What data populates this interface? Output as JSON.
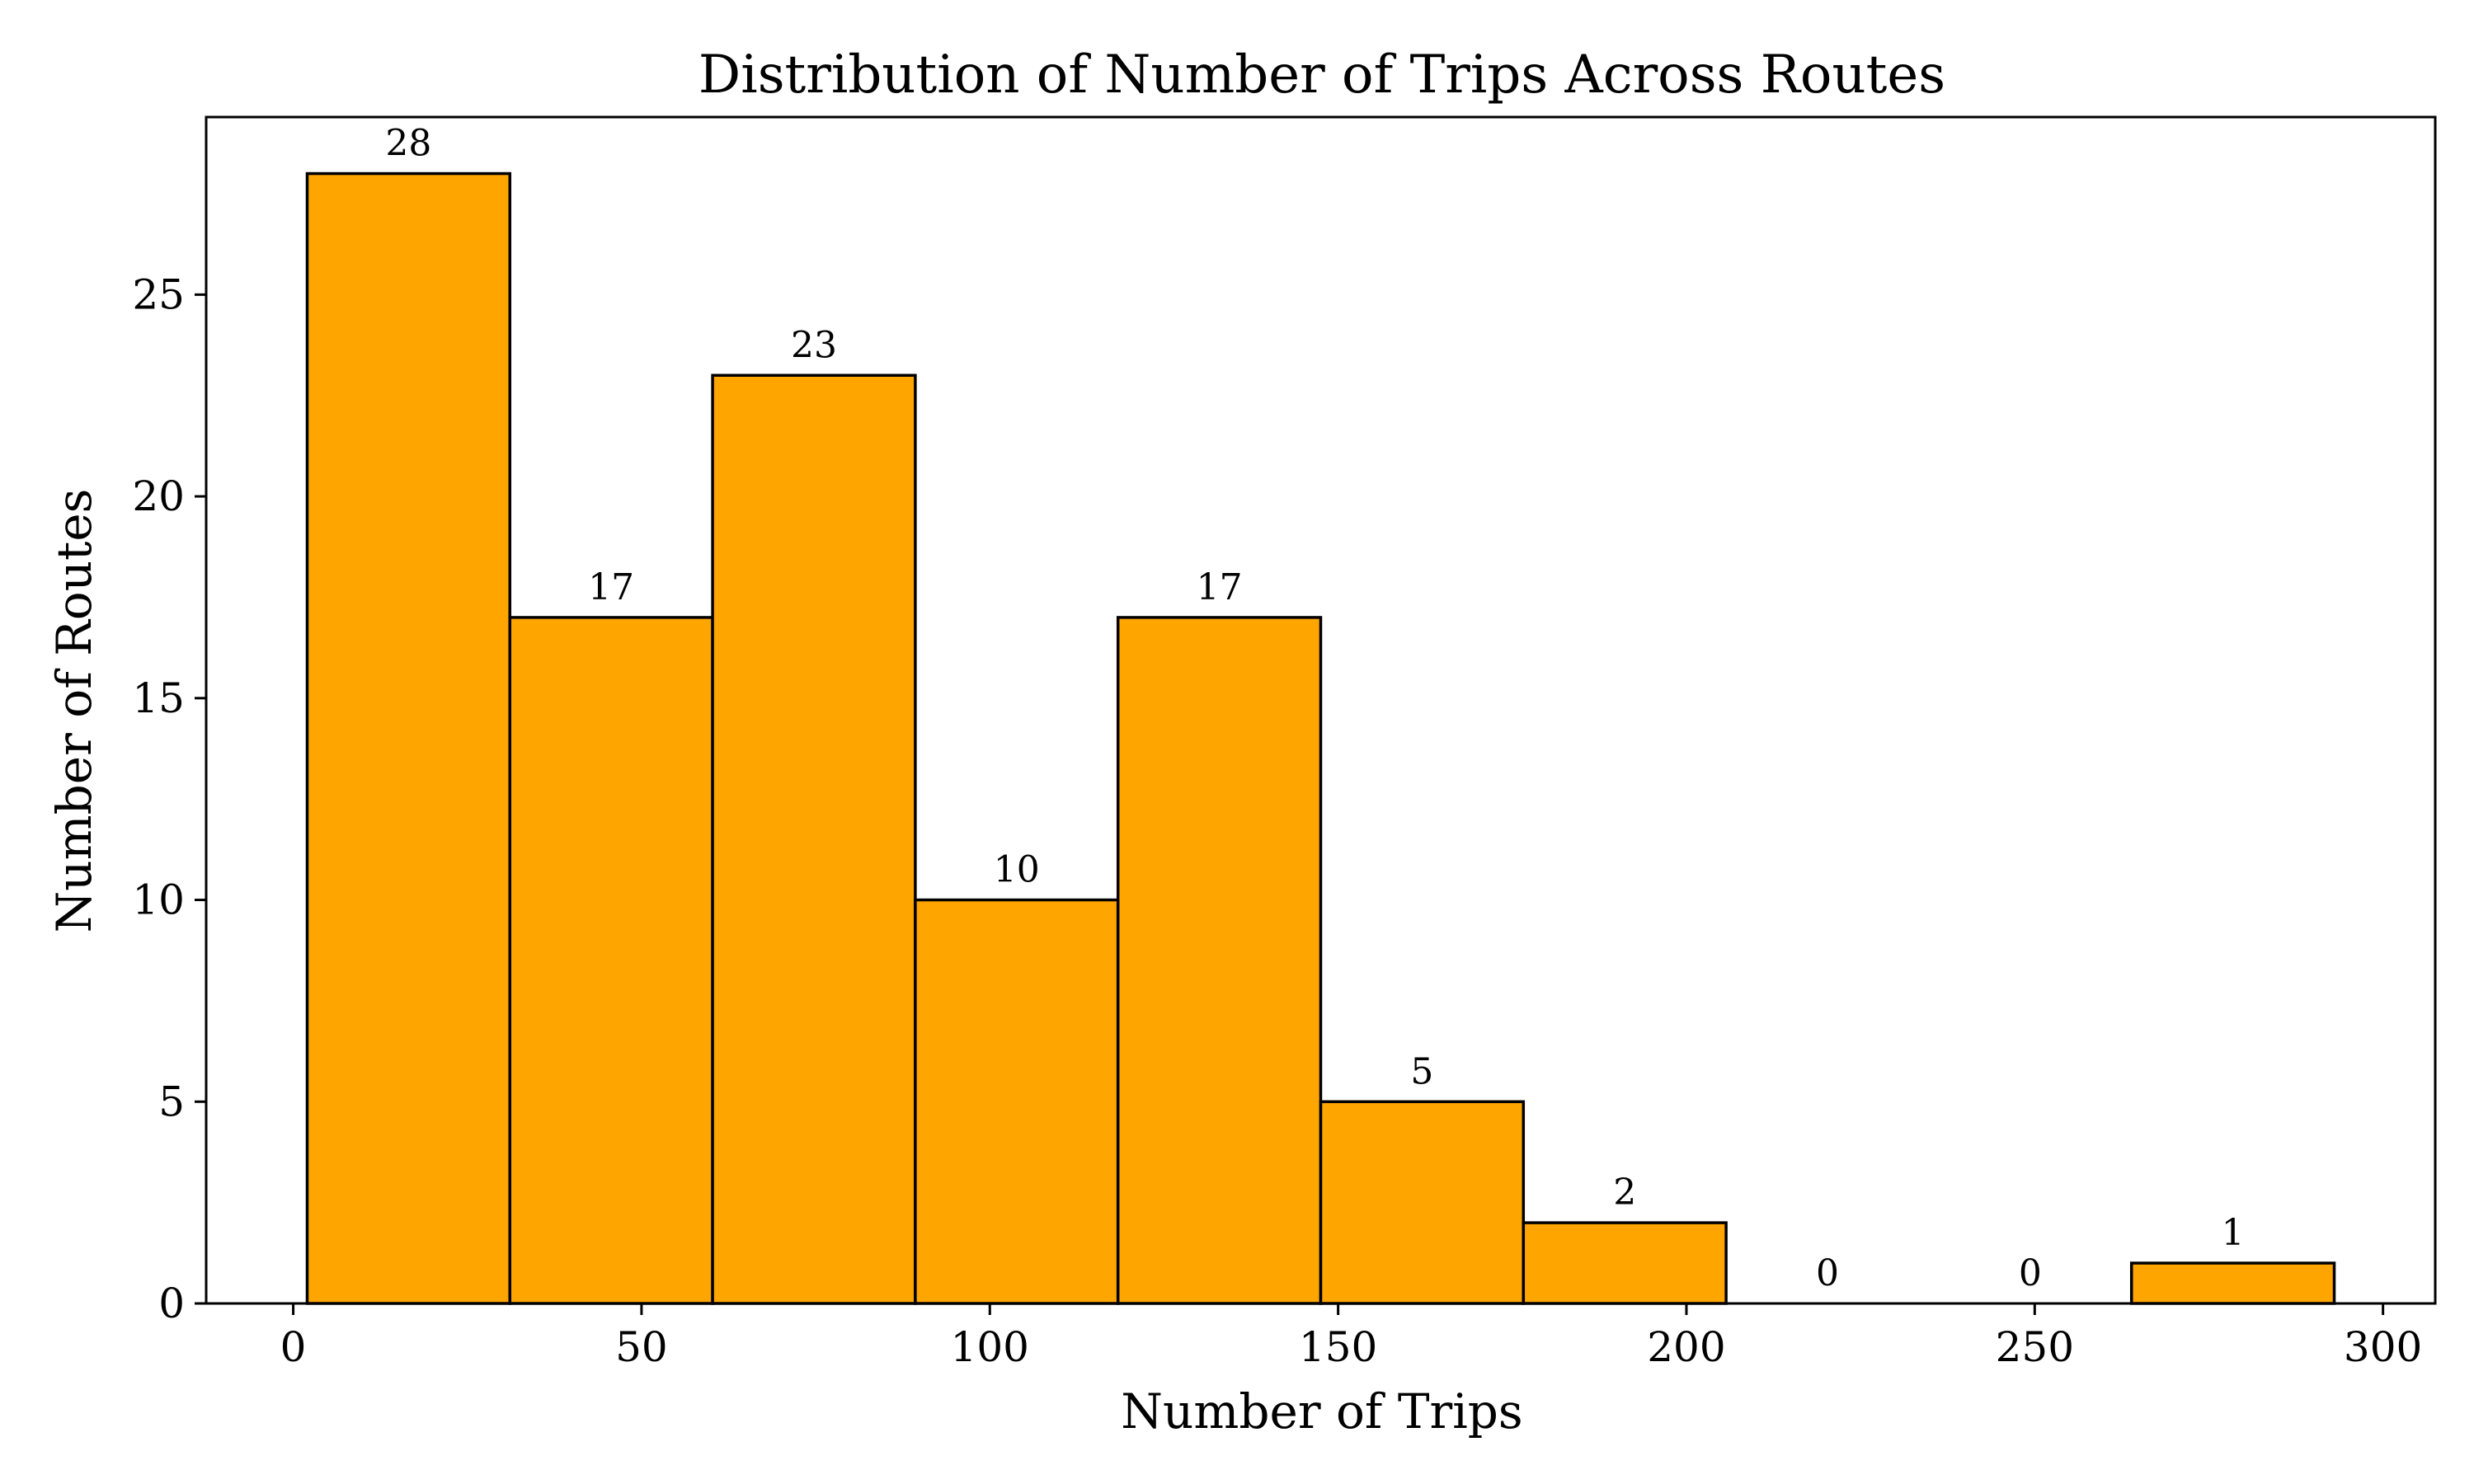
{
  "chart_data": {
    "type": "bar",
    "title": "Distribution of Number of Trips Across Routes",
    "xlabel": "Number of Trips",
    "ylabel": "Number of Routes",
    "xlim": [
      -12.5,
      307.5
    ],
    "ylim": [
      0,
      29.4
    ],
    "xticks": [
      0,
      50,
      100,
      150,
      200,
      250,
      300
    ],
    "yticks": [
      0,
      5,
      10,
      15,
      20,
      25
    ],
    "bin_edges": [
      2,
      31.1,
      60.2,
      89.3,
      118.4,
      147.5,
      176.6,
      205.7,
      234.8,
      263.9,
      293
    ],
    "values": [
      28,
      17,
      23,
      10,
      17,
      5,
      2,
      0,
      0,
      1
    ],
    "data_labels": [
      "28",
      "17",
      "23",
      "10",
      "17",
      "5",
      "2",
      "0",
      "0",
      "1"
    ],
    "bar_color": "#FFA500",
    "edge_color": "#000000",
    "grid": false,
    "legend": "none"
  }
}
